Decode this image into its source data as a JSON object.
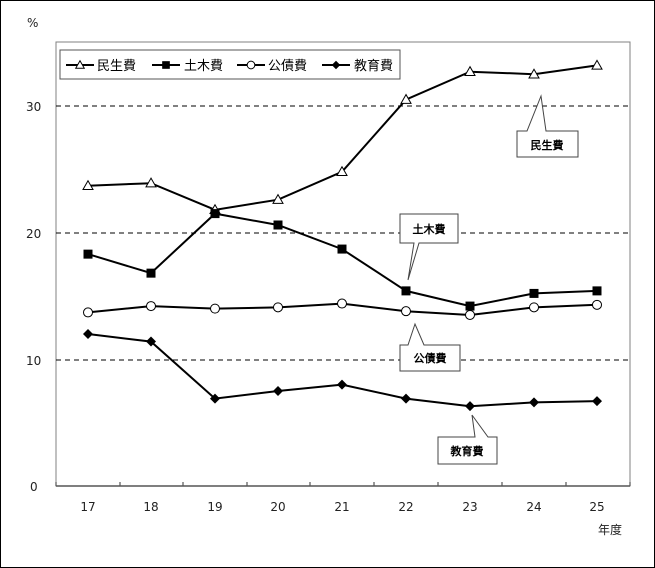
{
  "chart_data": {
    "type": "line",
    "title": "",
    "xlabel": "年度",
    "ylabel": "%",
    "categories": [
      "17",
      "18",
      "19",
      "20",
      "21",
      "22",
      "23",
      "24",
      "25"
    ],
    "ylim": [
      0,
      35
    ],
    "yticks": [
      0,
      10,
      20,
      30
    ],
    "grid": "horizontal dashed at 10, 20, 30",
    "legend_position": "top-left inside plot",
    "series": [
      {
        "name": "民生費",
        "marker": "triangle-open",
        "values": [
          23.7,
          23.9,
          21.8,
          22.6,
          24.8,
          30.5,
          32.7,
          32.5,
          33.2
        ]
      },
      {
        "name": "土木費",
        "marker": "square-filled",
        "values": [
          18.3,
          16.8,
          21.5,
          20.6,
          18.7,
          15.4,
          14.2,
          15.2,
          15.4
        ]
      },
      {
        "name": "公債費",
        "marker": "circle-open",
        "values": [
          13.7,
          14.2,
          14.0,
          14.1,
          14.4,
          13.8,
          13.5,
          14.1,
          14.3
        ]
      },
      {
        "name": "教育費",
        "marker": "diamond-filled",
        "values": [
          12.0,
          11.4,
          6.9,
          7.5,
          8.0,
          6.9,
          6.3,
          6.6,
          6.7
        ]
      }
    ],
    "annotations": [
      {
        "text": "民生費",
        "points_to": {
          "series": "民生費",
          "category": "24"
        }
      },
      {
        "text": "土木費",
        "points_to": {
          "series": "土木費",
          "category": "22"
        }
      },
      {
        "text": "公債費",
        "points_to": {
          "series": "公債費",
          "category": "22"
        }
      },
      {
        "text": "教育費",
        "points_to": {
          "series": "教育費",
          "category": "23"
        }
      }
    ]
  },
  "axis": {
    "y_unit": "%",
    "x_unit": "年度",
    "y_labels": [
      "0",
      "10",
      "20",
      "30"
    ],
    "x_labels": [
      "17",
      "18",
      "19",
      "20",
      "21",
      "22",
      "23",
      "24",
      "25"
    ]
  },
  "legend": {
    "items": [
      {
        "label": "民生費",
        "marker": "triangle-open"
      },
      {
        "label": "土木費",
        "marker": "square-filled"
      },
      {
        "label": "公債費",
        "marker": "circle-open"
      },
      {
        "label": "教育費",
        "marker": "diamond-filled"
      }
    ]
  },
  "callouts": {
    "minsei": "民生費",
    "doboku": "土木費",
    "kosai": "公債費",
    "kyoiku": "教育費"
  },
  "colors": {
    "line": "#000000",
    "grid": "#000000",
    "axis": "#808080",
    "background": "#ffffff"
  }
}
